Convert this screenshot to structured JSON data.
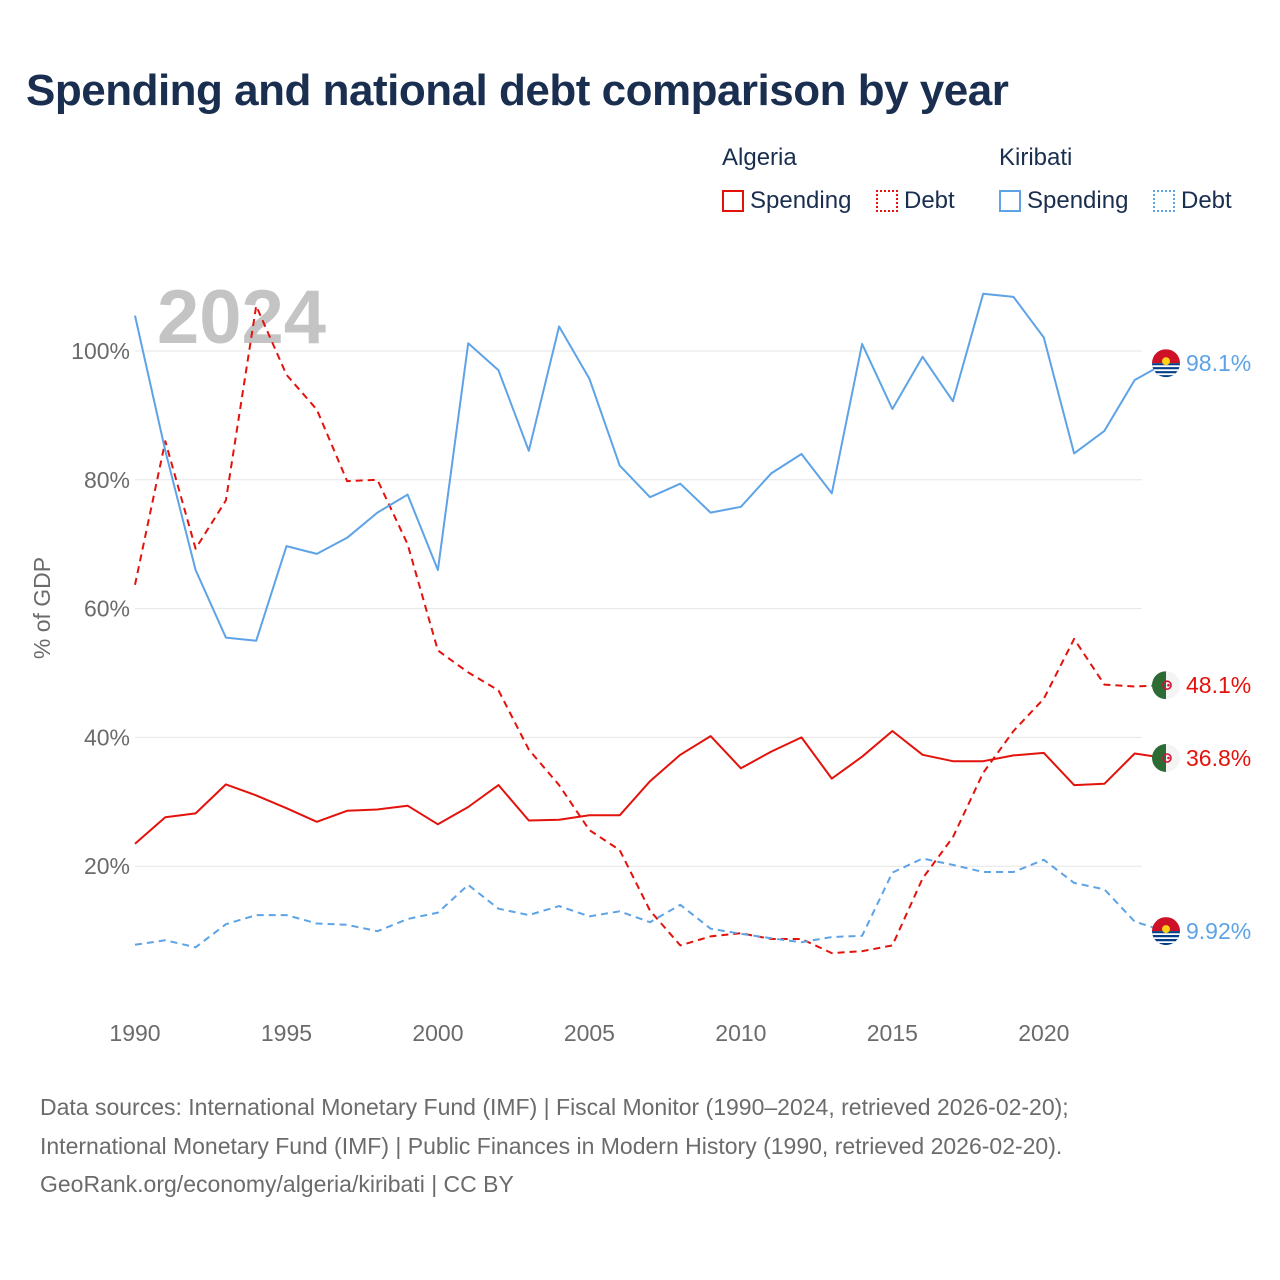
{
  "header": {
    "title": "Spending and national debt comparison by year"
  },
  "legend": {
    "groups": [
      {
        "country": "Algeria",
        "items": [
          {
            "label": "Spending",
            "style": "solid",
            "color": "#e3120b"
          },
          {
            "label": "Debt",
            "style": "dotted",
            "color": "#e3120b"
          }
        ]
      },
      {
        "country": "Kiribati",
        "items": [
          {
            "label": "Spending",
            "style": "solid",
            "color": "#5da3e6"
          },
          {
            "label": "Debt",
            "style": "dotted",
            "color": "#5da3e6"
          }
        ]
      }
    ]
  },
  "chart_data": {
    "type": "line",
    "title": "Spending and national debt comparison by year",
    "year_watermark": "2024",
    "xlabel": "",
    "ylabel": "% of GDP",
    "xlim": [
      1990,
      2024
    ],
    "ylim": [
      0,
      110
    ],
    "x_ticks": [
      1990,
      1995,
      2000,
      2005,
      2010,
      2015,
      2020
    ],
    "y_ticks": [
      20,
      40,
      60,
      80,
      100
    ],
    "y_tick_labels": [
      "20%",
      "40%",
      "60%",
      "80%",
      "100%"
    ],
    "x": [
      1990,
      1991,
      1992,
      1993,
      1994,
      1995,
      1996,
      1997,
      1998,
      1999,
      2000,
      2001,
      2002,
      2003,
      2004,
      2005,
      2006,
      2007,
      2008,
      2009,
      2010,
      2011,
      2012,
      2013,
      2014,
      2015,
      2016,
      2017,
      2018,
      2019,
      2020,
      2021,
      2022,
      2023,
      2024
    ],
    "series": [
      {
        "name": "Algeria Spending",
        "country": "Algeria",
        "color": "#e3120b",
        "dash": "solid",
        "end_label": "36.8%",
        "values": [
          23.5,
          27.6,
          28.2,
          32.7,
          31.0,
          29.0,
          26.9,
          28.6,
          28.8,
          29.4,
          26.5,
          29.2,
          32.6,
          27.1,
          27.2,
          27.9,
          27.9,
          33.2,
          37.3,
          40.2,
          35.2,
          37.8,
          40.0,
          33.6,
          37.0,
          41.0,
          37.3,
          36.3,
          36.3,
          37.2,
          37.6,
          32.6,
          32.8,
          37.5,
          36.8
        ]
      },
      {
        "name": "Algeria Debt",
        "country": "Algeria",
        "color": "#e3120b",
        "dash": "dashed",
        "end_label": "48.1%",
        "values": [
          63.7,
          86.0,
          69.3,
          76.8,
          107.0,
          96.3,
          90.9,
          79.8,
          80.0,
          70.0,
          53.5,
          50.1,
          47.3,
          38.1,
          32.6,
          25.6,
          22.5,
          13.1,
          7.7,
          9.1,
          9.6,
          8.7,
          8.7,
          6.5,
          6.8,
          7.7,
          18.1,
          24.5,
          34.5,
          41.0,
          46.0,
          55.3,
          48.2,
          47.9,
          48.1
        ]
      },
      {
        "name": "Kiribati Spending",
        "country": "Kiribati",
        "color": "#5da3e6",
        "dash": "solid",
        "end_label": "98.1%",
        "values": [
          105.5,
          84.5,
          66.0,
          55.5,
          55.0,
          69.7,
          68.5,
          71.0,
          74.9,
          77.7,
          66.0,
          101.2,
          97.0,
          84.5,
          103.8,
          95.7,
          82.2,
          77.3,
          79.4,
          74.9,
          75.8,
          81.0,
          84.0,
          77.9,
          101.1,
          91.0,
          99.1,
          92.2,
          108.9,
          108.4,
          102.1,
          84.1,
          87.6,
          95.5,
          98.1
        ]
      },
      {
        "name": "Kiribati Debt",
        "country": "Kiribati",
        "color": "#5da3e6",
        "dash": "dashed",
        "end_label": "9.92%",
        "values": [
          7.8,
          8.5,
          7.4,
          11.0,
          12.4,
          12.4,
          11.1,
          10.9,
          9.9,
          11.8,
          12.8,
          17.1,
          13.4,
          12.4,
          13.8,
          12.2,
          13.0,
          11.3,
          14.0,
          10.3,
          9.5,
          8.8,
          8.2,
          9.0,
          9.2,
          19.0,
          21.2,
          20.2,
          19.1,
          19.1,
          21.0,
          17.4,
          16.4,
          11.4,
          9.92
        ]
      }
    ]
  },
  "footer": {
    "line1": "Data sources: International Monetary Fund (IMF) | Fiscal Monitor (1990–2024, retrieved 2026-02-20);",
    "line2": "International Monetary Fund (IMF) | Public Finances in Modern History (1990, retrieved 2026-02-20).",
    "line3": "GeoRank.org/economy/algeria/kiribati | CC BY"
  }
}
